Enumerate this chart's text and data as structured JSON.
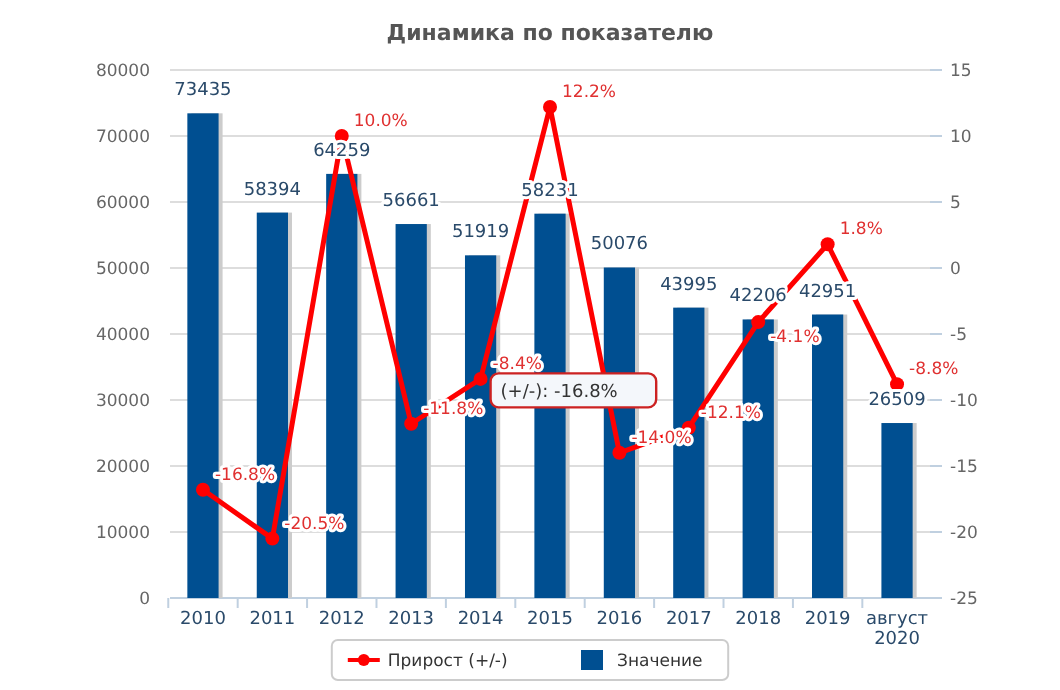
{
  "chart_data": {
    "type": "bar",
    "title": "Динамика по показателю",
    "categories": [
      "2010",
      "2011",
      "2012",
      "2013",
      "2014",
      "2015",
      "2016",
      "2017",
      "2018",
      "2019",
      "август 2020"
    ],
    "series": [
      {
        "name": "Прирост (+/-)",
        "type": "line",
        "axis": "y2",
        "color": "#ff0000",
        "marker": "circle",
        "values": [
          -16.8,
          -20.5,
          10.0,
          -11.8,
          -8.4,
          12.2,
          -14.0,
          -12.1,
          -4.1,
          1.8,
          -8.8
        ],
        "value_labels": [
          "-16.8%",
          "-20.5%",
          "10.0%",
          "-11.8%",
          "-8.4%",
          "12.2%",
          "-14.0%",
          "-12.1%",
          "-4.1%",
          "1.8%",
          "-8.8%"
        ]
      },
      {
        "name": "Значение",
        "color": "#004f91",
        "values": [
          73435,
          58394,
          64259,
          56661,
          51919,
          58231,
          50076,
          43995,
          42206,
          42951,
          26509
        ]
      }
    ],
    "data_labels": true,
    "ylim": [
      0,
      80000
    ],
    "yticks": [
      0,
      10000,
      20000,
      30000,
      40000,
      50000,
      60000,
      70000,
      80000
    ],
    "y2lim": [
      -25,
      15
    ],
    "y2ticks": [
      -25,
      -20,
      -15,
      -10,
      -5,
      0,
      5,
      10,
      15
    ],
    "grid": "y",
    "legend": "bottom",
    "annotations": [
      "(+/-): -16.8%"
    ]
  }
}
